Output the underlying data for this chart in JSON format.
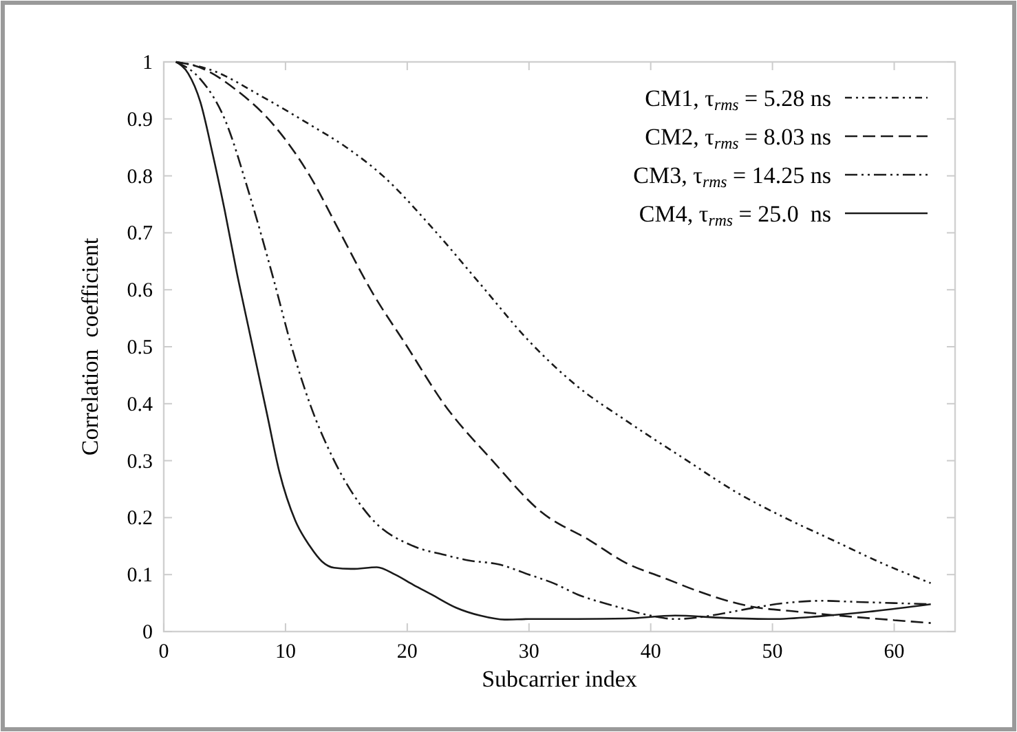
{
  "chart_data": {
    "type": "line",
    "xlabel": "Subcarrier index",
    "ylabel": "Correlation  coefficient",
    "xlim": [
      0,
      65
    ],
    "ylim": [
      0,
      1
    ],
    "xticks": [
      0,
      10,
      20,
      30,
      40,
      50,
      60
    ],
    "yticks": [
      0,
      0.1,
      0.2,
      0.3,
      0.4,
      0.5,
      0.6,
      0.7,
      0.8,
      0.9,
      1
    ],
    "grid": false,
    "legend": "top right",
    "marker": "none",
    "series": [
      {
        "name": "CM1, τ$_{rms}$ = 5.28 ns",
        "color": "#1a1a1a",
        "line_style": "dotted",
        "x": [
          1,
          4,
          8,
          12,
          15,
          18,
          22,
          26,
          30,
          34,
          38,
          43,
          47,
          51,
          55,
          59,
          63
        ],
        "values": [
          1,
          0.985,
          0.94,
          0.89,
          0.85,
          0.8,
          0.71,
          0.61,
          0.51,
          0.43,
          0.37,
          0.3,
          0.245,
          0.2,
          0.16,
          0.12,
          0.085
        ]
      },
      {
        "name": "CM2, τ$_{rms}$ = 8.03 ns",
        "color": "#1a1a1a",
        "line_style": "dashed",
        "x": [
          1,
          3,
          6,
          9,
          12,
          14.5,
          17,
          20,
          23,
          27,
          31,
          35,
          38,
          41,
          44,
          48,
          52,
          56,
          60,
          63
        ],
        "values": [
          1,
          0.99,
          0.95,
          0.89,
          0.8,
          0.7,
          0.6,
          0.5,
          0.4,
          0.3,
          0.21,
          0.16,
          0.12,
          0.095,
          0.07,
          0.045,
          0.035,
          0.027,
          0.02,
          0.015
        ]
      },
      {
        "name": "CM3, τ$_{rms}$ = 14.25 ns",
        "color": "#1a1a1a",
        "line_style": "dashdot",
        "x": [
          1,
          3,
          5,
          7,
          9,
          10.5,
          12,
          14,
          17,
          20.5,
          23,
          25,
          27.5,
          30,
          32,
          34,
          37,
          40,
          42,
          44,
          46,
          48,
          51,
          54,
          57,
          60,
          63
        ],
        "values": [
          1,
          0.97,
          0.9,
          0.77,
          0.62,
          0.5,
          0.4,
          0.3,
          0.2,
          0.15,
          0.135,
          0.125,
          0.118,
          0.1,
          0.085,
          0.065,
          0.045,
          0.028,
          0.022,
          0.025,
          0.032,
          0.04,
          0.05,
          0.054,
          0.052,
          0.05,
          0.048
        ]
      },
      {
        "name": "CM4, τ$_{rms}$ = 25.0  ns",
        "color": "#1a1a1a",
        "line_style": "solid",
        "x": [
          1,
          2,
          3,
          4,
          5,
          6,
          7,
          7.5,
          8.5,
          9.5,
          10.8,
          12,
          13,
          14,
          15.5,
          17.5,
          19,
          20.5,
          22,
          24,
          26,
          28,
          30,
          34,
          38,
          42,
          46,
          50,
          54,
          58,
          63
        ],
        "values": [
          1,
          0.98,
          0.93,
          0.84,
          0.74,
          0.63,
          0.53,
          0.48,
          0.38,
          0.28,
          0.195,
          0.15,
          0.123,
          0.112,
          0.11,
          0.113,
          0.1,
          0.082,
          0.065,
          0.042,
          0.028,
          0.021,
          0.022,
          0.022,
          0.023,
          0.028,
          0.024,
          0.022,
          0.027,
          0.035,
          0.048
        ]
      }
    ]
  }
}
